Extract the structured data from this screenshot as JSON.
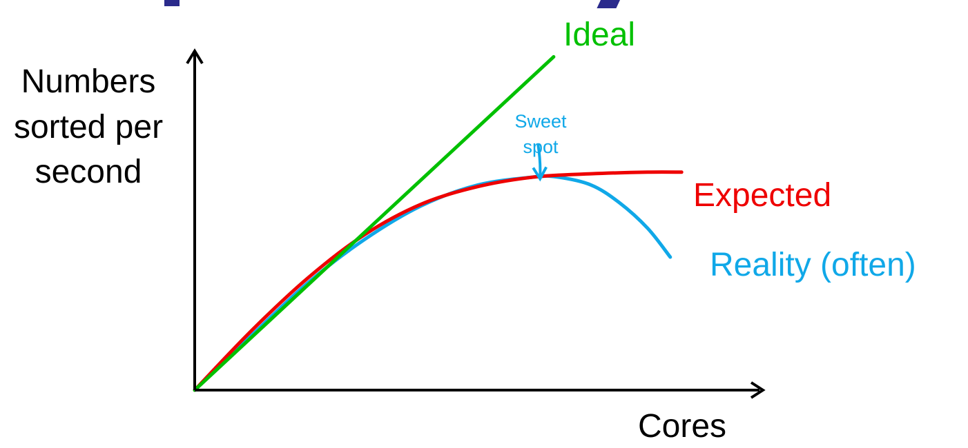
{
  "chart_data": {
    "type": "line",
    "title": "",
    "xlabel": "Cores",
    "ylabel_lines": [
      "Numbers",
      "sorted per",
      "second"
    ],
    "xlim": [
      0,
      10
    ],
    "ylim": [
      0,
      10
    ],
    "grid": false,
    "series": [
      {
        "name": "Ideal",
        "color": "#00c000",
        "x": [
          0,
          6.34
        ],
        "y": [
          0,
          10.4
        ]
      },
      {
        "name": "Expected",
        "color": "#ee0000",
        "x": [
          0,
          1,
          2,
          3,
          4,
          5,
          6,
          7,
          8,
          8.6
        ],
        "y": [
          0,
          1.85,
          3.5,
          4.85,
          5.8,
          6.35,
          6.65,
          6.75,
          6.8,
          6.8
        ]
      },
      {
        "name": "Reality (often)",
        "color": "#10a8e8",
        "x": [
          0,
          1,
          2,
          3,
          4,
          5,
          6,
          6.4,
          7,
          7.5,
          8,
          8.4
        ],
        "y": [
          0,
          1.7,
          3.35,
          4.7,
          5.75,
          6.4,
          6.65,
          6.65,
          6.4,
          5.85,
          5.05,
          4.15
        ]
      }
    ],
    "annotations": [
      {
        "text_lines": [
          "Sweet",
          "spot"
        ],
        "x": 6.1,
        "y": 6.55,
        "color": "#10a8e8"
      }
    ]
  }
}
